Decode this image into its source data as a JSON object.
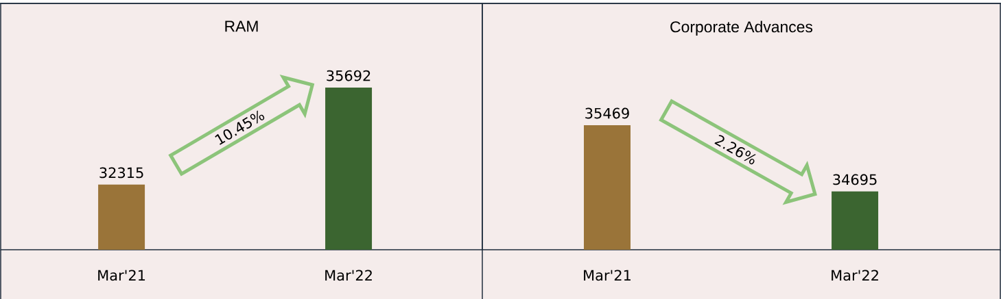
{
  "chart_data": [
    {
      "type": "bar",
      "title": "RAM",
      "categories": [
        "Mar'21",
        "Mar'22"
      ],
      "values": [
        32315,
        35692
      ],
      "colors": [
        "#9a7439",
        "#3b6530"
      ],
      "ylim": [
        30050,
        38620
      ],
      "tick_labels": "x",
      "data_labels": true,
      "annotations": [
        "10.45%"
      ]
    },
    {
      "type": "bar",
      "title": "Corporate Advances",
      "categories": [
        "Mar'21",
        "Mar'22"
      ],
      "values": [
        35469,
        34695
      ],
      "colors": [
        "#9a7439",
        "#3b6530"
      ],
      "ylim": [
        34015,
        36890
      ],
      "tick_labels": "x",
      "data_labels": true,
      "annotations": [
        "2.26%"
      ]
    }
  ]
}
